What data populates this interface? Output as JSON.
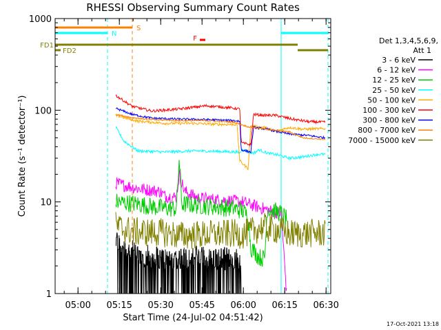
{
  "chart_data": {
    "type": "line",
    "title": "RHESSI Observing Summary Count Rates",
    "xlabel": "Start Time (24-Jul-02 04:51:42)",
    "ylabel": "Count Rate (s⁻¹ detector⁻¹)",
    "yscale": "log",
    "ylim": [
      1,
      1000
    ],
    "xlim_minutes": [
      0,
      100
    ],
    "x_ticks": [
      {
        "label": "05:00",
        "minute": 8.3
      },
      {
        "label": "05:15",
        "minute": 23.3
      },
      {
        "label": "05:30",
        "minute": 38.3
      },
      {
        "label": "05:45",
        "minute": 53.3
      },
      {
        "label": "06:00",
        "minute": 68.3
      },
      {
        "label": "06:15",
        "minute": 83.3
      },
      {
        "label": "06:30",
        "minute": 98.3
      }
    ],
    "y_ticks": [
      {
        "label": "1",
        "value": 1
      },
      {
        "label": "10",
        "value": 10
      },
      {
        "label": "100",
        "value": 100
      },
      {
        "label": "1000",
        "value": 1000
      }
    ],
    "legend": {
      "header_line1": "Det 1,3,4,5,6,9,",
      "header_line2": "Att 1",
      "placement": "right"
    },
    "series": [
      {
        "name": "3 - 6 keV",
        "color": "#000000",
        "noise": 0.25,
        "points": [
          [
            22,
            2.8
          ],
          [
            30,
            2.0
          ],
          [
            40,
            1.8
          ],
          [
            50,
            1.9
          ],
          [
            60,
            1.8
          ],
          [
            67,
            1.8
          ],
          [
            67.5,
            1.0
          ]
        ]
      },
      {
        "name": "6 - 12 keV",
        "color": "#ff00ff",
        "noise": 0.07,
        "points": [
          [
            22,
            16
          ],
          [
            30,
            14
          ],
          [
            38,
            13
          ],
          [
            40,
            11.5
          ],
          [
            44,
            11.2
          ],
          [
            45,
            20
          ],
          [
            47,
            13
          ],
          [
            52,
            11
          ],
          [
            60,
            10.5
          ],
          [
            68,
            10
          ],
          [
            70,
            9.5
          ],
          [
            78,
            8
          ],
          [
            82,
            7.5
          ],
          [
            84,
            1.0
          ]
        ]
      },
      {
        "name": "12 - 25 keV",
        "color": "#00cc00",
        "noise": 0.1,
        "points": [
          [
            22,
            10
          ],
          [
            30,
            9.5
          ],
          [
            37,
            8.7
          ],
          [
            40,
            8.6
          ],
          [
            44,
            8.4
          ],
          [
            45,
            29
          ],
          [
            46,
            9.5
          ],
          [
            55,
            9.0
          ],
          [
            65,
            8.5
          ],
          [
            68,
            8.0
          ],
          [
            70,
            7.0
          ],
          [
            71,
            3.2
          ],
          [
            74,
            2.5
          ],
          [
            76,
            2.4
          ],
          [
            77,
            8.5
          ],
          [
            82,
            7.5
          ],
          [
            84,
            6.5
          ]
        ]
      },
      {
        "name": "25 - 50 keV",
        "color": "#00ffff",
        "noise": 0.015,
        "points": [
          [
            22,
            65
          ],
          [
            25,
            46
          ],
          [
            30,
            36
          ],
          [
            40,
            35
          ],
          [
            50,
            36
          ],
          [
            60,
            35.5
          ],
          [
            66,
            35
          ],
          [
            67,
            34
          ],
          [
            68,
            38
          ],
          [
            70,
            35
          ],
          [
            72,
            34
          ],
          [
            74,
            37
          ],
          [
            77,
            34
          ],
          [
            80,
            33
          ],
          [
            85,
            30
          ],
          [
            90,
            31
          ],
          [
            95,
            33
          ],
          [
            98,
            33
          ]
        ]
      },
      {
        "name": "50 - 100 keV",
        "color": "#ffaa00",
        "noise": 0.015,
        "points": [
          [
            22,
            88
          ],
          [
            30,
            76
          ],
          [
            40,
            72
          ],
          [
            50,
            72
          ],
          [
            60,
            70
          ],
          [
            66,
            70
          ],
          [
            67,
            28
          ],
          [
            70,
            23
          ],
          [
            71,
            67
          ],
          [
            76,
            65
          ],
          [
            80,
            59
          ],
          [
            85,
            65
          ],
          [
            90,
            62
          ],
          [
            98,
            63
          ]
        ]
      },
      {
        "name": "100 - 300 keV",
        "color": "#ff0000",
        "noise": 0.015,
        "points": [
          [
            22,
            145
          ],
          [
            28,
            110
          ],
          [
            35,
            98
          ],
          [
            45,
            103
          ],
          [
            55,
            112
          ],
          [
            64,
            106
          ],
          [
            67,
            103
          ],
          [
            67.5,
            44
          ],
          [
            71,
            42
          ],
          [
            72,
            90
          ],
          [
            76,
            88
          ],
          [
            80,
            88
          ],
          [
            86,
            80
          ],
          [
            92,
            75
          ],
          [
            98,
            74
          ]
        ]
      },
      {
        "name": "300 - 800 keV",
        "color": "#0000ff",
        "noise": 0.012,
        "points": [
          [
            22,
            105
          ],
          [
            28,
            90
          ],
          [
            35,
            82
          ],
          [
            45,
            80
          ],
          [
            55,
            79
          ],
          [
            65,
            77
          ],
          [
            67,
            76
          ],
          [
            67.5,
            37
          ],
          [
            71,
            35
          ],
          [
            72,
            65
          ],
          [
            77,
            62
          ],
          [
            80,
            59
          ],
          [
            85,
            55
          ],
          [
            92,
            53
          ],
          [
            98,
            50
          ]
        ]
      },
      {
        "name": "800 - 7000 keV",
        "color": "#ff8000",
        "noise": 0.008,
        "points": [
          [
            22,
            90
          ],
          [
            28,
            83
          ],
          [
            35,
            79
          ],
          [
            45,
            77
          ],
          [
            55,
            77
          ],
          [
            65,
            74
          ],
          [
            70,
            66
          ],
          [
            75,
            63
          ],
          [
            80,
            60
          ],
          [
            85,
            58
          ],
          [
            90,
            50
          ],
          [
            98,
            48
          ]
        ]
      },
      {
        "name": "7000 - 15000 keV",
        "color": "#808000",
        "noise": 0.16,
        "points": [
          [
            22,
            5.5
          ],
          [
            25,
            5.0
          ],
          [
            30,
            4.7
          ],
          [
            40,
            4.6
          ],
          [
            45,
            4.3
          ],
          [
            55,
            4.4
          ],
          [
            65,
            4.5
          ],
          [
            68,
            4.4
          ],
          [
            70,
            4.6
          ],
          [
            75,
            5.3
          ],
          [
            80,
            5.0
          ],
          [
            85,
            4.5
          ],
          [
            90,
            4.5
          ],
          [
            98,
            4.6
          ]
        ]
      }
    ],
    "vertical_markers": [
      {
        "minute": 0.0,
        "color": "#00ffff",
        "style": "solid"
      },
      {
        "minute": 19.0,
        "color": "#00ffff",
        "style": "dashed"
      },
      {
        "minute": 28.0,
        "color": "#ff8000",
        "style": "dashed"
      },
      {
        "minute": 82.0,
        "color": "#00ffff",
        "style": "solid"
      },
      {
        "minute": 99.0,
        "color": "#00ffff",
        "style": "dashed"
      }
    ],
    "flag_bars": [
      {
        "label": "S",
        "color": "#ff8000",
        "start": 0.0,
        "end": 28.0
      },
      {
        "label": "N",
        "color": "#00ffff",
        "start": 0.0,
        "end": 19.0
      },
      {
        "label": "N",
        "color": "#00ffff",
        "start": 82.0,
        "end": 99.0,
        "show_label": false
      },
      {
        "label": "F",
        "color": "#ff0000",
        "start": 52.5,
        "end": 54.5
      },
      {
        "label": "FD1",
        "color": "#808000",
        "start": 0.0,
        "end": 88.0
      },
      {
        "label": "FD2",
        "color": "#808000",
        "start": 0.0,
        "end": 2.0
      },
      {
        "label": "FD2",
        "color": "#808000",
        "start": 88.0,
        "end": 99.0,
        "show_label": false
      }
    ],
    "footer_date": "17-Oct-2021 13:18"
  }
}
